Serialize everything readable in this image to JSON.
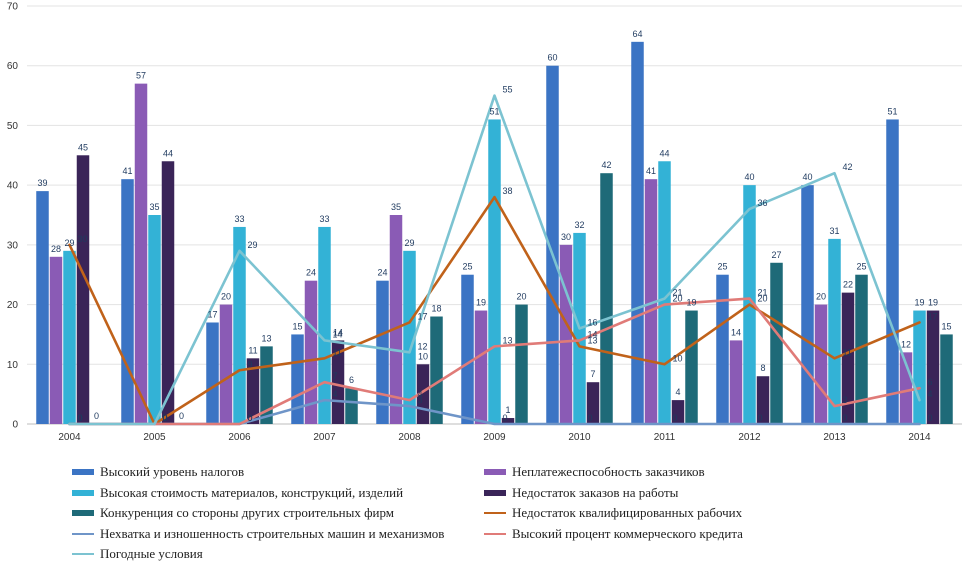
{
  "chart_data": {
    "type": "bar",
    "categories": [
      "2004",
      "2005",
      "2006",
      "2007",
      "2008",
      "2009",
      "2010",
      "2011",
      "2012",
      "2013",
      "2014"
    ],
    "ylim": [
      0,
      70
    ],
    "yticks": [
      0,
      10,
      20,
      30,
      40,
      50,
      60,
      70
    ],
    "grid": true,
    "legend_position": "bottom",
    "series": [
      {
        "name": "Высокий уровень налогов",
        "kind": "bar",
        "color": "#3b74c4",
        "values": [
          39,
          41,
          17,
          15,
          24,
          25,
          60,
          64,
          25,
          40,
          51
        ]
      },
      {
        "name": "Неплатежеспособность заказчиков",
        "kind": "bar",
        "color": "#8a5bb5",
        "values": [
          28,
          57,
          20,
          24,
          35,
          19,
          30,
          41,
          14,
          20,
          12
        ]
      },
      {
        "name": "Высокая стоимость материалов, конструкций, изделий",
        "kind": "bar",
        "color": "#33b2d6",
        "values": [
          29,
          35,
          33,
          33,
          29,
          51,
          32,
          44,
          40,
          31,
          19
        ]
      },
      {
        "name": "Недостаток заказов на работы",
        "kind": "bar",
        "color": "#3a2458",
        "values": [
          45,
          44,
          11,
          14,
          10,
          1,
          7,
          4,
          8,
          22,
          19
        ]
      },
      {
        "name": "Конкуренция со стороны  других строительных фирм",
        "kind": "bar",
        "color": "#1e6a78",
        "values": [
          0,
          0,
          13,
          6,
          18,
          20,
          42,
          19,
          27,
          25,
          15
        ]
      },
      {
        "name": "Недостаток квалифицированных рабочих",
        "kind": "line",
        "color": "#c0621a",
        "values": [
          30,
          0,
          9,
          11,
          17,
          38,
          13,
          10,
          20,
          11,
          17
        ]
      },
      {
        "name": "Нехватка и изношенность строительных машин и механизмов",
        "kind": "line",
        "color": "#6f95c8",
        "values": [
          0,
          0,
          0,
          4,
          3,
          0,
          0,
          0,
          0,
          0,
          0
        ]
      },
      {
        "name": "Высокий процент коммерческого кредита",
        "kind": "line",
        "color": "#e07b78",
        "values": [
          0,
          0,
          0,
          7,
          4,
          13,
          14,
          20,
          21,
          3,
          6
        ]
      },
      {
        "name": "Погодные условия",
        "kind": "line",
        "color": "#7cc3d1",
        "values": [
          0,
          0,
          29,
          14,
          12,
          55,
          16,
          21,
          36,
          42,
          4
        ]
      }
    ]
  }
}
